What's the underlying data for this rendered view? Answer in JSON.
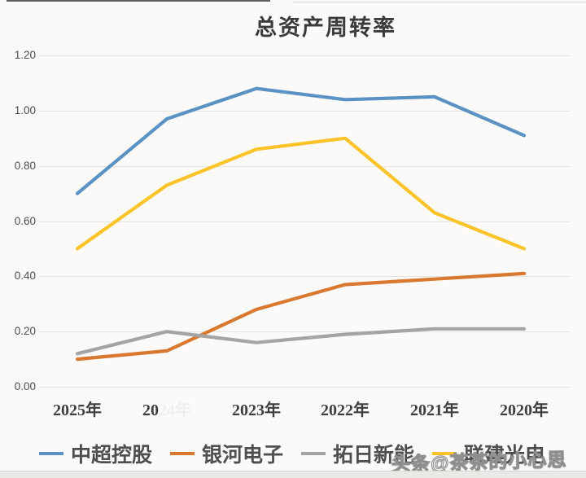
{
  "page": {
    "watermark_text": "头条@茶茶的小心思"
  },
  "chart_data": {
    "type": "line",
    "title": "总资产周转率",
    "categories": [
      "2025年",
      "2024年",
      "2023年",
      "2022年",
      "2021年",
      "2020年"
    ],
    "x_axis_visible_labels": [
      {
        "text": "2025年",
        "faded": ""
      },
      {
        "text": "20",
        "faded": "24年"
      },
      {
        "text": "2023年",
        "faded": ""
      },
      {
        "text": "2022年",
        "faded": ""
      },
      {
        "text": "2021年",
        "faded": ""
      },
      {
        "text": "2020年",
        "faded": ""
      }
    ],
    "y_tick_labels": [
      "1.20",
      "1.00",
      "0.80",
      "0.60",
      "0.40",
      "0.20",
      "0.00"
    ],
    "ylim": [
      0,
      1.2
    ],
    "grid": true,
    "legend_position": "bottom",
    "series": [
      {
        "name": "中超控股",
        "color": "#5b92c4",
        "values": [
          0.7,
          0.97,
          1.08,
          1.04,
          1.05,
          0.91
        ]
      },
      {
        "name": "银河电子",
        "color": "#d8792f",
        "values": [
          0.1,
          0.13,
          0.28,
          0.37,
          0.39,
          0.41
        ]
      },
      {
        "name": "拓日新能",
        "color": "#a4a4a4",
        "values": [
          0.12,
          0.2,
          0.16,
          0.19,
          0.21,
          0.21
        ]
      },
      {
        "name": "联建光电",
        "color": "#fcc42a",
        "values": [
          0.5,
          0.73,
          0.86,
          0.9,
          0.63,
          0.5
        ]
      }
    ]
  }
}
